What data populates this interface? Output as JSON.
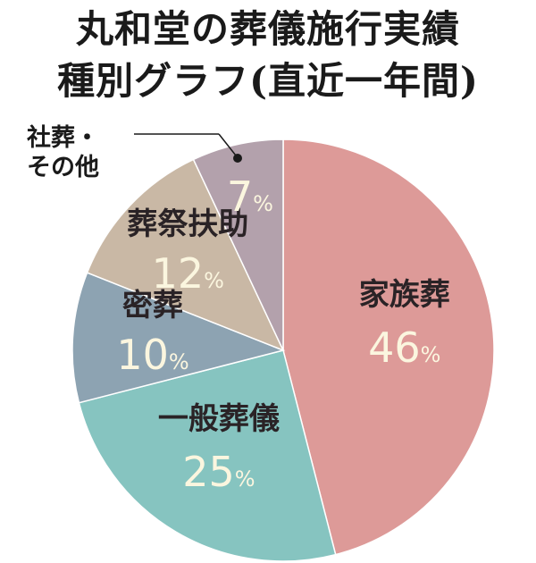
{
  "chart_data": {
    "type": "pie",
    "title_line1": "丸和堂の葬儀施行実績",
    "title_line2": "種別グラフ(直近一年間)",
    "categories": [
      "家族葬",
      "一般葬儀",
      "密葬",
      "葬祭扶助",
      "社葬・その他"
    ],
    "values": [
      46,
      25,
      10,
      12,
      7
    ],
    "unit": "%",
    "colors": [
      "#dd9a98",
      "#86c4c0",
      "#8da3b2",
      "#c9b8a5",
      "#b3a1ac"
    ],
    "callout": {
      "line1": "社葬・",
      "line2": "その他"
    }
  }
}
